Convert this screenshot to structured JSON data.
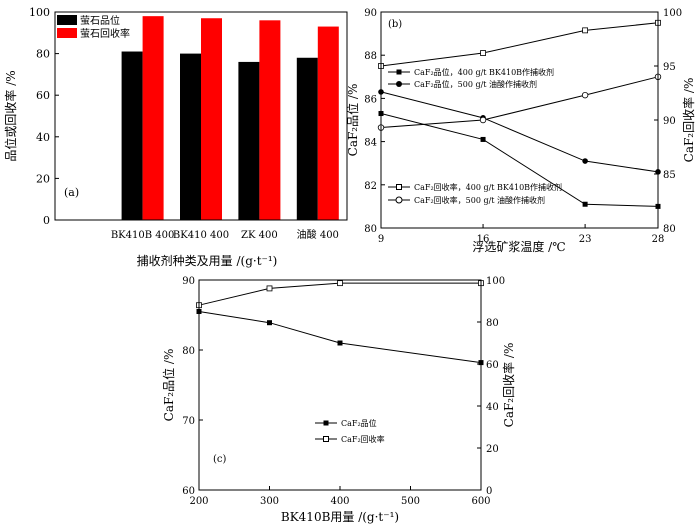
{
  "chart_data": [
    {
      "id": "a",
      "type": "bar",
      "panel_label": "(a)",
      "categories": [
        "",
        "BK410B 400",
        "BK410 400",
        "ZK 400",
        "油酸 400"
      ],
      "series": [
        {
          "name": "萤石品位",
          "color": "#000000",
          "values": [
            null,
            81,
            80,
            76,
            78
          ]
        },
        {
          "name": "萤石回收率",
          "color": "#ff0000",
          "values": [
            null,
            98,
            97,
            96,
            93
          ]
        }
      ],
      "xlabel": "捕收剂种类及用量 /(g·t⁻¹)",
      "ylabel": "品位或回收率 /%",
      "ylim": [
        0,
        100
      ],
      "yticks": [
        0,
        20,
        40,
        60,
        80,
        100
      ]
    },
    {
      "id": "b",
      "type": "line",
      "panel_label": "(b)",
      "x": [
        9,
        16,
        23,
        28
      ],
      "xticks": [
        9,
        16,
        23,
        28
      ],
      "xlabel": "浮选矿浆温度 /℃",
      "ylabel_left": "CaF₂品位 /%",
      "ylabel_right": "CaF₂回收率 /%",
      "ylim_left": [
        80,
        90
      ],
      "yticks_left": [
        80,
        82,
        84,
        86,
        88,
        90
      ],
      "ylim_right": [
        80,
        100
      ],
      "yticks_right": [
        80,
        85,
        90,
        95,
        100
      ],
      "series": [
        {
          "name": "CaF₂品位，400 g/t BK410B作捕收剂",
          "axis": "left",
          "marker": "filled-square",
          "values": [
            85.3,
            84.1,
            81.1,
            81.0
          ]
        },
        {
          "name": "CaF₂品位，500 g/t 油酸作捕收剂",
          "axis": "left",
          "marker": "filled-circle",
          "values": [
            86.3,
            85.1,
            83.1,
            82.6
          ]
        },
        {
          "name": "CaF₂回收率，400 g/t BK410B作捕收剂",
          "axis": "right",
          "marker": "open-square",
          "values": [
            95.0,
            96.2,
            98.3,
            99.0
          ]
        },
        {
          "name": "CaF₂回收率，500 g/t 油酸作捕收剂",
          "axis": "right",
          "marker": "open-circle",
          "values": [
            89.3,
            90.0,
            92.3,
            94.0
          ]
        }
      ]
    },
    {
      "id": "c",
      "type": "line",
      "panel_label": "(c)",
      "x": [
        200,
        300,
        400,
        600
      ],
      "xticks": [
        200,
        300,
        400,
        500,
        600
      ],
      "xlabel": "BK410B用量 /(g·t⁻¹)",
      "ylabel_left": "CaF₂品位 /%",
      "ylabel_right": "CaF₂回收率 /%",
      "ylim_left": [
        60,
        90
      ],
      "yticks_left": [
        60,
        70,
        80,
        90
      ],
      "ylim_right": [
        0,
        100
      ],
      "yticks_right": [
        0,
        20,
        40,
        60,
        80,
        100
      ],
      "series": [
        {
          "name": "CaF₂品位",
          "axis": "left",
          "marker": "filled-square",
          "values": [
            85.5,
            83.9,
            81.0,
            78.2
          ]
        },
        {
          "name": "CaF₂回收率",
          "axis": "right",
          "marker": "open-square",
          "values": [
            88.0,
            96.0,
            98.5,
            98.5
          ]
        }
      ]
    }
  ]
}
